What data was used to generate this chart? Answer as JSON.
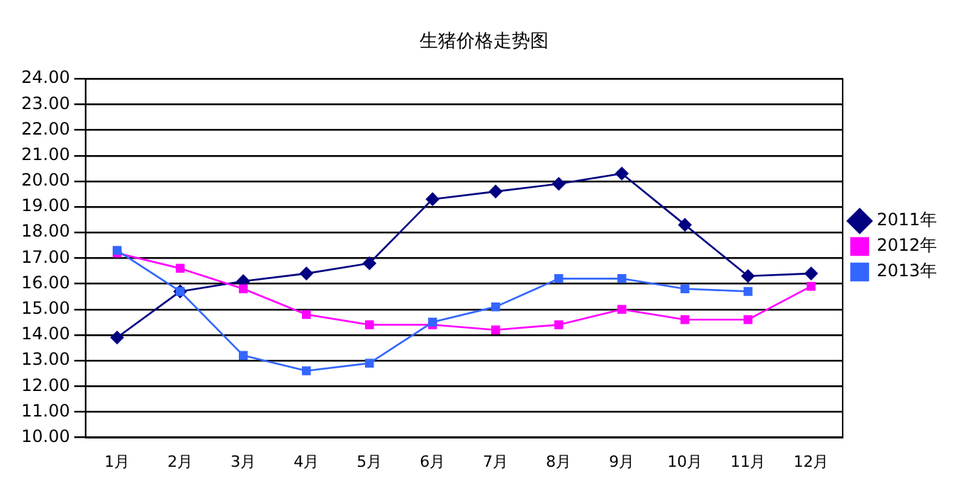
{
  "chart_data": {
    "type": "line",
    "title": "生猪价格走势图",
    "categories": [
      "1月",
      "2月",
      "3月",
      "4月",
      "5月",
      "6月",
      "7月",
      "8月",
      "9月",
      "10月",
      "11月",
      "12月"
    ],
    "series": [
      {
        "name": "2011年",
        "color": "#000080",
        "marker": "diamond",
        "values": [
          13.9,
          15.7,
          16.1,
          16.4,
          16.8,
          19.3,
          19.6,
          19.9,
          20.3,
          18.3,
          16.3,
          16.4
        ]
      },
      {
        "name": "2012年",
        "color": "#ff00ff",
        "marker": "square",
        "values": [
          17.2,
          16.6,
          15.8,
          14.8,
          14.4,
          14.4,
          14.2,
          14.4,
          15.0,
          14.6,
          14.6,
          15.9
        ]
      },
      {
        "name": "2013年",
        "color": "#3366ff",
        "marker": "square",
        "values": [
          17.3,
          15.7,
          13.2,
          12.6,
          12.9,
          14.5,
          15.1,
          16.2,
          16.2,
          15.8,
          15.7,
          null
        ]
      }
    ],
    "ylim": [
      10,
      24
    ],
    "yticks": [
      {
        "value": 10,
        "label": "10.00"
      },
      {
        "value": 11,
        "label": "11.00"
      },
      {
        "value": 12,
        "label": "12.00"
      },
      {
        "value": 13,
        "label": "13.00"
      },
      {
        "value": 14,
        "label": "14.00"
      },
      {
        "value": 15,
        "label": "15.00"
      },
      {
        "value": 16,
        "label": "16.00"
      },
      {
        "value": 17,
        "label": "17.00"
      },
      {
        "value": 18,
        "label": "18.00"
      },
      {
        "value": 19,
        "label": "19.00"
      },
      {
        "value": 20,
        "label": "20.00"
      },
      {
        "value": 21,
        "label": "21.00"
      },
      {
        "value": 22,
        "label": "22.00"
      },
      {
        "value": 23,
        "label": "23.00"
      },
      {
        "value": 24,
        "label": "24.00"
      }
    ],
    "grid": "y",
    "legend": "right",
    "line_style": "solid"
  }
}
